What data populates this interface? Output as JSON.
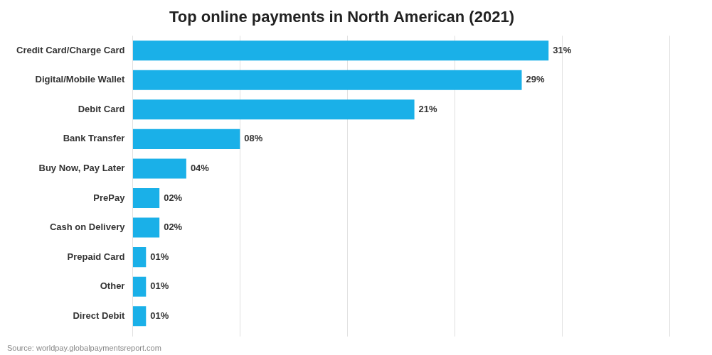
{
  "chart_data": {
    "type": "bar",
    "orientation": "horizontal",
    "title": "Top online payments in North American (2021)",
    "categories": [
      "Credit Card/Charge Card",
      "Digital/Mobile Wallet",
      "Debit Card",
      "Bank Transfer",
      "Buy Now, Pay Later",
      "PrePay",
      "Cash on Delivery",
      "Prepaid Card",
      "Other",
      "Direct Debit"
    ],
    "values": [
      31,
      29,
      21,
      8,
      4,
      2,
      2,
      1,
      1,
      1
    ],
    "value_labels": [
      "31%",
      "29%",
      "21%",
      "08%",
      "04%",
      "02%",
      "02%",
      "01%",
      "01%",
      "01%"
    ],
    "data_labels": true,
    "color": "#1ab0e8",
    "xlim": [
      0,
      40
    ],
    "xticks": [
      0,
      8,
      16,
      24,
      32,
      40
    ],
    "grid": true,
    "tick_labels": "y",
    "annotations": [
      "Source: worldpay.globalpaymentsreport.com"
    ]
  }
}
